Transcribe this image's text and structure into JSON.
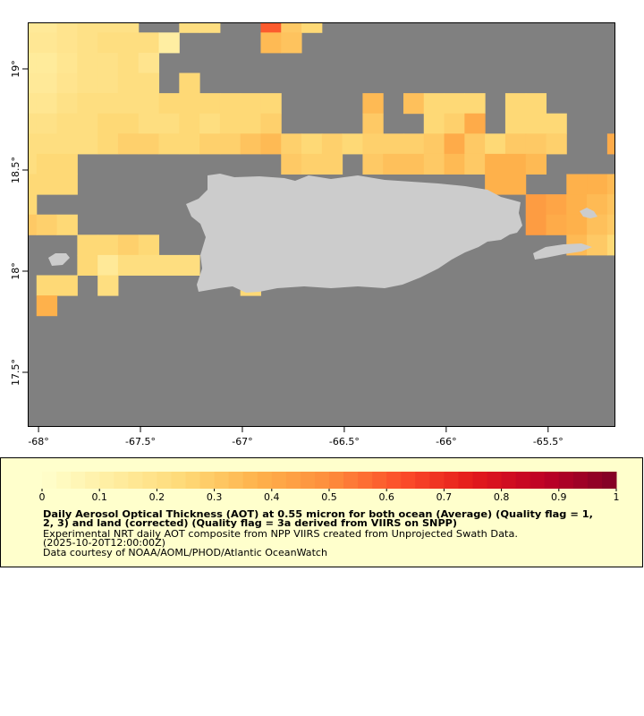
{
  "chart_data": {
    "type": "heatmap",
    "xlim": [
      -68.053,
      -65.17
    ],
    "ylim": [
      17.23,
      19.23
    ],
    "xticks": [
      {
        "value": -68,
        "label": "-68°"
      },
      {
        "value": -67.5,
        "label": "-67.5°"
      },
      {
        "value": -67,
        "label": "-67°"
      },
      {
        "value": -66.5,
        "label": "-66.5°"
      },
      {
        "value": -66,
        "label": "-66°"
      },
      {
        "value": -65.5,
        "label": "-65.5°"
      }
    ],
    "yticks": [
      {
        "value": 17.5,
        "label": "17.5°"
      },
      {
        "value": 18,
        "label": "18°"
      },
      {
        "value": 18.5,
        "label": "18.5°"
      },
      {
        "value": 19,
        "label": "19°"
      }
    ],
    "lon": [
      -68.06,
      -67.96,
      -67.86,
      -67.76,
      -67.66,
      -67.56,
      -67.46,
      -67.36,
      -67.26,
      -67.16,
      -67.06,
      -66.96,
      -66.86,
      -66.76,
      -66.66,
      -66.56,
      -66.46,
      -66.36,
      -66.26,
      -66.16,
      -66.06,
      -65.96,
      -65.86,
      -65.76,
      -65.66,
      -65.56,
      -65.46,
      -65.36,
      -65.26,
      -65.16
    ],
    "lat": [
      19.23,
      19.13,
      19.03,
      18.93,
      18.83,
      18.73,
      18.63,
      18.53,
      18.43,
      18.33,
      18.23,
      18.13,
      18.03,
      17.93,
      17.83
    ],
    "values": [
      [
        0.15,
        0.15,
        0.18,
        0.2,
        0.2,
        0.2,
        null,
        null,
        0.22,
        0.22,
        null,
        null,
        0.6,
        0.3,
        0.25,
        null,
        null,
        null,
        null,
        null,
        null,
        null,
        null,
        null,
        null,
        null,
        null,
        null,
        null,
        null
      ],
      [
        0.16,
        0.16,
        0.18,
        0.2,
        0.22,
        0.22,
        0.22,
        0.12,
        null,
        null,
        null,
        null,
        0.35,
        0.32,
        null,
        null,
        null,
        null,
        null,
        null,
        null,
        null,
        null,
        null,
        null,
        null,
        null,
        null,
        null,
        null
      ],
      [
        0.14,
        0.14,
        0.17,
        0.2,
        0.2,
        0.22,
        0.18,
        null,
        null,
        null,
        null,
        null,
        null,
        null,
        null,
        null,
        null,
        null,
        null,
        null,
        null,
        null,
        null,
        null,
        null,
        null,
        null,
        null,
        null,
        null
      ],
      [
        0.15,
        0.15,
        0.18,
        0.2,
        0.2,
        0.22,
        0.22,
        null,
        0.25,
        null,
        null,
        null,
        null,
        null,
        null,
        null,
        null,
        null,
        null,
        null,
        null,
        null,
        null,
        null,
        null,
        null,
        null,
        null,
        null,
        null
      ],
      [
        0.17,
        0.17,
        0.2,
        0.22,
        0.22,
        0.22,
        0.22,
        0.25,
        0.25,
        0.25,
        0.25,
        0.25,
        0.25,
        null,
        null,
        null,
        null,
        0.35,
        null,
        0.33,
        0.25,
        0.25,
        0.25,
        null,
        0.25,
        0.25,
        null,
        null,
        null,
        null
      ],
      [
        0.2,
        0.2,
        0.22,
        0.22,
        0.25,
        0.25,
        0.22,
        0.22,
        0.25,
        0.22,
        0.25,
        0.25,
        0.28,
        null,
        null,
        null,
        null,
        0.3,
        null,
        null,
        0.25,
        0.28,
        0.4,
        null,
        0.25,
        0.25,
        0.25,
        null,
        null,
        null
      ],
      [
        0.22,
        0.22,
        0.22,
        0.22,
        0.25,
        0.28,
        0.28,
        0.25,
        0.25,
        0.28,
        0.28,
        0.32,
        0.35,
        0.28,
        0.25,
        0.28,
        0.25,
        0.28,
        0.28,
        0.28,
        0.3,
        0.4,
        0.3,
        0.25,
        0.3,
        0.3,
        0.28,
        null,
        null,
        0.4
      ],
      [
        0.22,
        0.25,
        0.25,
        null,
        null,
        null,
        null,
        null,
        null,
        null,
        null,
        null,
        null,
        0.3,
        0.28,
        0.28,
        null,
        0.3,
        0.33,
        0.33,
        0.3,
        0.35,
        0.3,
        0.38,
        0.38,
        0.35,
        null,
        null,
        null,
        null
      ],
      [
        0.25,
        0.25,
        0.25,
        null,
        null,
        null,
        null,
        null,
        null,
        null,
        null,
        null,
        null,
        null,
        null,
        null,
        null,
        null,
        null,
        null,
        null,
        null,
        null,
        0.38,
        0.38,
        null,
        null,
        0.38,
        0.38,
        0.35
      ],
      [
        0.25,
        null,
        null,
        null,
        null,
        null,
        null,
        null,
        null,
        null,
        null,
        null,
        null,
        null,
        null,
        null,
        null,
        null,
        null,
        null,
        null,
        null,
        null,
        null,
        null,
        0.45,
        0.42,
        0.38,
        0.35,
        0.32
      ],
      [
        0.3,
        0.28,
        0.25,
        null,
        null,
        null,
        null,
        null,
        null,
        null,
        null,
        null,
        null,
        null,
        null,
        null,
        null,
        null,
        null,
        null,
        null,
        null,
        null,
        null,
        null,
        0.45,
        0.4,
        0.38,
        0.33,
        0.3
      ],
      [
        null,
        null,
        null,
        0.25,
        0.25,
        0.28,
        0.25,
        null,
        null,
        null,
        null,
        null,
        null,
        null,
        null,
        null,
        null,
        null,
        null,
        null,
        null,
        null,
        null,
        null,
        null,
        null,
        null,
        0.35,
        0.3,
        0.25
      ],
      [
        null,
        null,
        null,
        0.25,
        0.15,
        0.22,
        0.22,
        0.22,
        0.22,
        null,
        null,
        null,
        null,
        null,
        null,
        null,
        null,
        null,
        null,
        null,
        null,
        null,
        null,
        null,
        null,
        null,
        null,
        null,
        null,
        null
      ],
      [
        null,
        0.25,
        0.25,
        null,
        0.22,
        null,
        null,
        null,
        null,
        null,
        null,
        0.25,
        null,
        null,
        null,
        null,
        null,
        null,
        null,
        null,
        null,
        null,
        null,
        null,
        null,
        null,
        null,
        null,
        null,
        null
      ],
      [
        null,
        0.38,
        null,
        null,
        null,
        null,
        null,
        null,
        null,
        null,
        null,
        null,
        null,
        null,
        null,
        null,
        null,
        null,
        null,
        null,
        null,
        null,
        null,
        null,
        null,
        null,
        null,
        null,
        null,
        null
      ]
    ],
    "colorbar": {
      "range": [
        0,
        1
      ],
      "ticks": [
        0,
        0.1,
        0.2,
        0.3,
        0.4,
        0.5,
        0.6,
        0.7,
        0.8,
        0.9,
        1
      ],
      "colors": [
        "#ffffcc",
        "#ffeda0",
        "#fed976",
        "#feb24c",
        "#fd8d3c",
        "#fc4e2a",
        "#e31a1c",
        "#bd0026",
        "#800026"
      ]
    },
    "title_lines": [
      "Daily Aerosol Optical Thickness (AOT) at 0.55 micron for both ocean (Average) (Quality flag = 1,",
      "2, 3) and land (corrected) (Quality flag = 3a derived from VIIRS on SNPP)"
    ],
    "caption_lines": [
      "Experimental NRT daily AOT composite from NPP VIIRS created from Unprojected Swath Data.",
      "(2025-10-20T12:00:00Z)",
      "Data courtesy of NOAA/AOML/PHOD/Atlantic OceanWatch"
    ]
  }
}
